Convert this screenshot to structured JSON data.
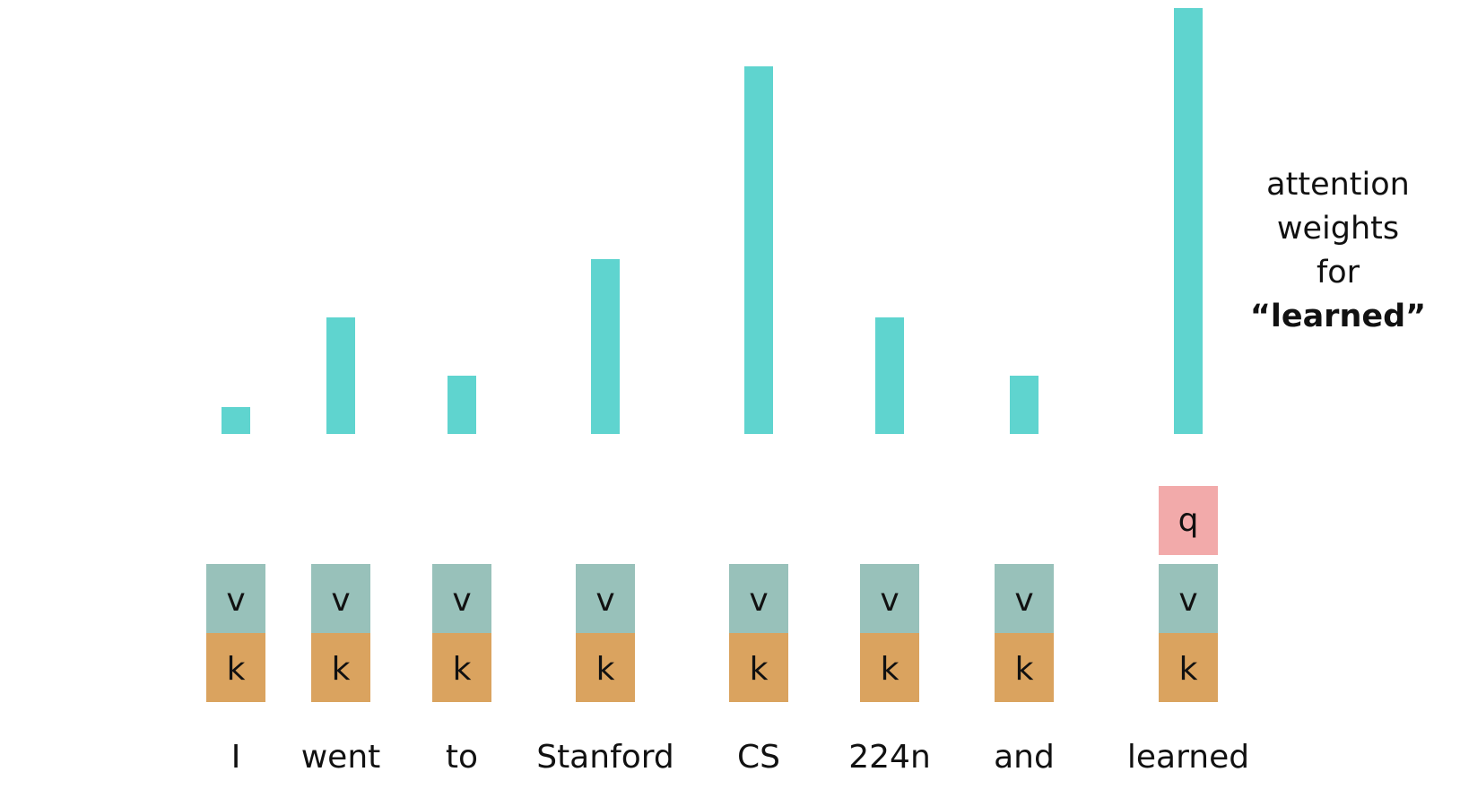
{
  "chart_data": {
    "type": "bar",
    "categories": [
      "I",
      "went",
      "to",
      "Stanford",
      "CS",
      "224n",
      "and",
      "learned"
    ],
    "values": [
      0.06,
      0.26,
      0.13,
      0.39,
      0.82,
      0.26,
      0.13,
      0.95
    ],
    "title": "",
    "xlabel": "",
    "ylabel": "",
    "ylim": [
      0,
      1
    ],
    "grid": false,
    "bar_color": "#5fd4cf"
  },
  "annotation": {
    "line1": "attention",
    "line2": "weights",
    "line3": "for",
    "line4": "“learned”"
  },
  "boxes": {
    "value_label": "v",
    "key_label": "k",
    "query_label": "q",
    "value_color": "#98c1ba",
    "key_color": "#daa35f",
    "query_color": "#f2aaaa"
  }
}
